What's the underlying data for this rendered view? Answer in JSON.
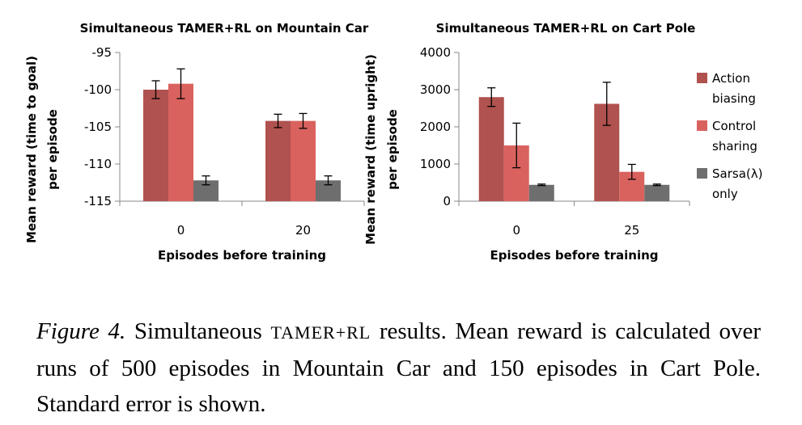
{
  "colors": {
    "action_biasing": "#B0524F",
    "control_sharing": "#D9625E",
    "sarsa_only": "#6E6E6E",
    "axis": "#888888"
  },
  "legend": [
    {
      "key": "action_biasing",
      "lines": [
        "Action",
        "biasing"
      ]
    },
    {
      "key": "control_sharing",
      "lines": [
        "Control",
        "sharing"
      ]
    },
    {
      "key": "sarsa_only",
      "lines": [
        "Sarsa(λ)",
        "only"
      ]
    }
  ],
  "chart_data": [
    {
      "type": "bar",
      "title": "Simultaneous TAMER+RL on Mountain Car",
      "xlabel": "Episodes before training",
      "ylabel_lines": [
        "Mean reward (time to goal)",
        "per episode"
      ],
      "categories": [
        "0",
        "20"
      ],
      "ylim": [
        -115,
        -95
      ],
      "yticks": [
        -95,
        -100,
        -105,
        -110,
        -115
      ],
      "baseline": -115,
      "series": [
        {
          "name": "Action biasing",
          "key": "action_biasing",
          "values": [
            -100,
            -104.2
          ],
          "errors": [
            1.2,
            0.9
          ]
        },
        {
          "name": "Control sharing",
          "key": "control_sharing",
          "values": [
            -99.2,
            -104.2
          ],
          "errors": [
            2.0,
            1.0
          ]
        },
        {
          "name": "Sarsa(λ) only",
          "key": "sarsa_only",
          "values": [
            -112.2,
            -112.2
          ],
          "errors": [
            0.6,
            0.6
          ]
        }
      ]
    },
    {
      "type": "bar",
      "title": "Simultaneous TAMER+RL on Cart Pole",
      "xlabel": "Episodes before training",
      "ylabel_lines": [
        "Mean reward (time upright)",
        "per episode"
      ],
      "categories": [
        "0",
        "25"
      ],
      "ylim": [
        0,
        4000
      ],
      "yticks": [
        4000,
        3000,
        2000,
        1000,
        0
      ],
      "baseline": 0,
      "series": [
        {
          "name": "Action biasing",
          "key": "action_biasing",
          "values": [
            2800,
            2620
          ],
          "errors": [
            250,
            580
          ]
        },
        {
          "name": "Control sharing",
          "key": "control_sharing",
          "values": [
            1500,
            790
          ],
          "errors": [
            600,
            200
          ]
        },
        {
          "name": "Sarsa(λ) only",
          "key": "sarsa_only",
          "values": [
            440,
            440
          ],
          "errors": [
            20,
            20
          ]
        }
      ]
    }
  ],
  "caption": {
    "figure_label": "Figure 4.",
    "text_1": " Simultaneous ",
    "smallcaps": "TAMER+RL",
    "text_2": " results.  Mean reward is calculated over runs of 500 episodes in Mountain Car and 150 episodes in Cart Pole. Standard error is shown."
  }
}
